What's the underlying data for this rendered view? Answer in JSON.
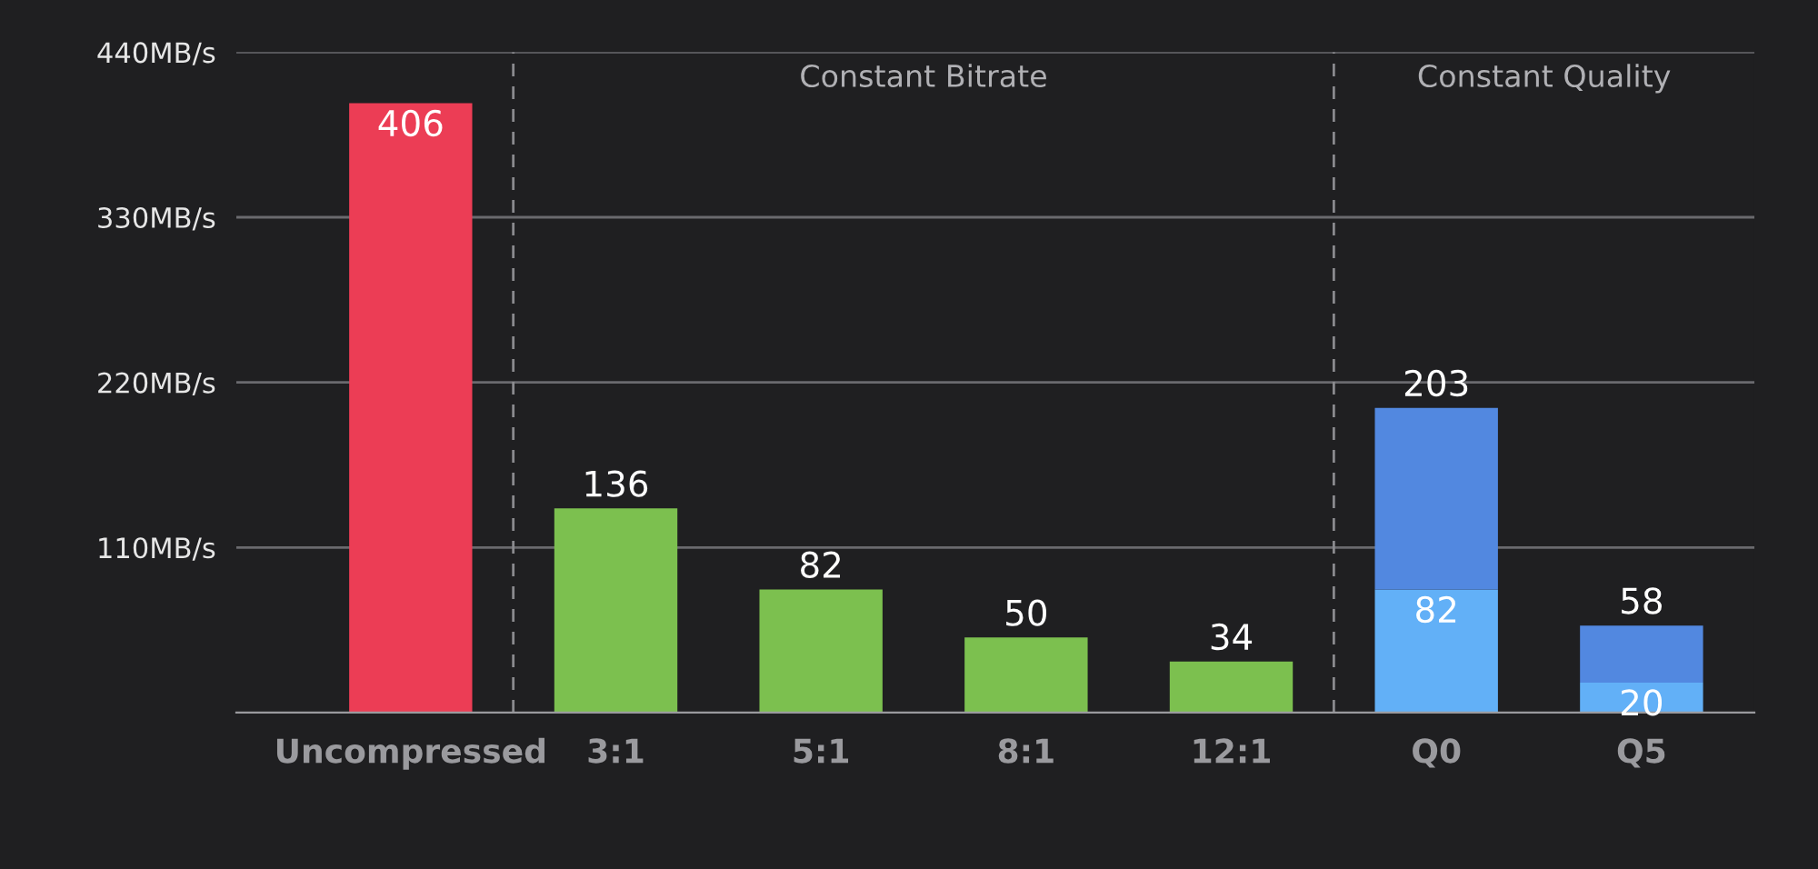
{
  "chart_data": {
    "type": "bar",
    "stacked": true,
    "categories": [
      "Uncompressed",
      "3:1",
      "5:1",
      "8:1",
      "12:1",
      "Q0",
      "Q5"
    ],
    "series": [
      {
        "colors": [
          "#ec3d55",
          "#7cc04f",
          "#7cc04f",
          "#7cc04f",
          "#7cc04f",
          "#62b0f7",
          "#62b0f7"
        ],
        "values": [
          406,
          136,
          82,
          50,
          34,
          82,
          20
        ],
        "value_labels": [
          "406",
          "136",
          "82",
          "50",
          "34",
          "82",
          "20"
        ]
      },
      {
        "colors": [
          null,
          null,
          null,
          null,
          null,
          "#5288e0",
          "#5288e0"
        ],
        "values": [
          null,
          null,
          null,
          null,
          null,
          121,
          38
        ]
      }
    ],
    "annotations": [
      "Constant Bitrate",
      "Constant Quality"
    ],
    "totals": [
      null,
      null,
      null,
      null,
      null,
      "203",
      "58"
    ],
    "ylim": [
      0,
      440
    ],
    "yticks": [
      {
        "value": 110,
        "label": "110MB/s"
      },
      {
        "value": 220,
        "label": "220MB/s"
      },
      {
        "value": 330,
        "label": "330MB/s"
      },
      {
        "value": 440,
        "label": "440MB/s"
      }
    ],
    "grid": "y"
  }
}
